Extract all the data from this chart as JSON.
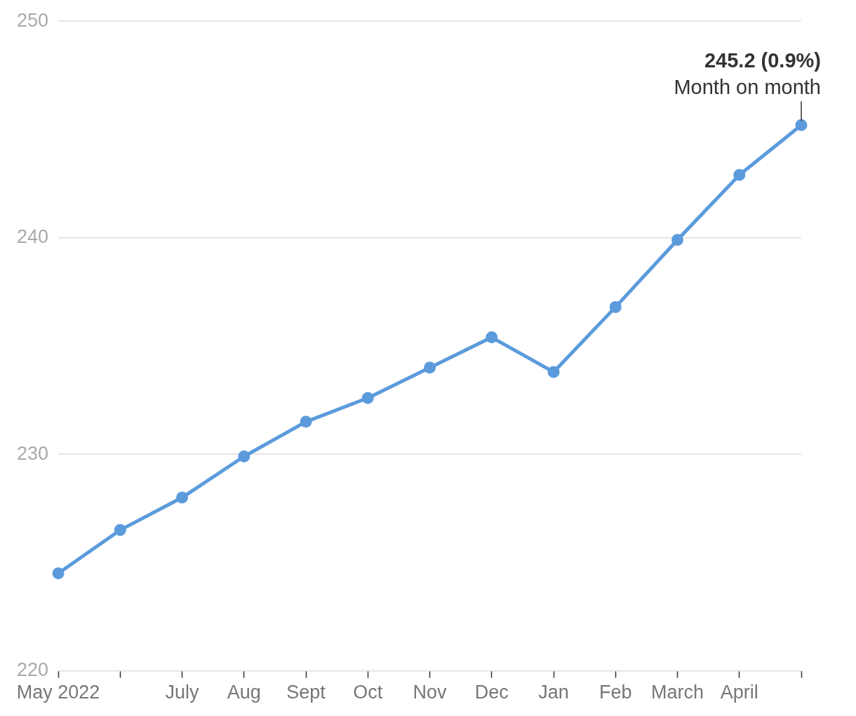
{
  "chart_data": {
    "type": "line",
    "categories": [
      "May 2022",
      null,
      "July",
      "Aug",
      "Sept",
      "Oct",
      "Nov",
      "Dec",
      "Jan",
      "Feb",
      "March",
      "April",
      null
    ],
    "series": [
      {
        "color": "#5b9bdc",
        "values": [
          224.5,
          226.5,
          228.0,
          229.9,
          231.5,
          232.6,
          234.0,
          235.4,
          233.8,
          236.8,
          239.9,
          242.9,
          245.2
        ]
      }
    ],
    "ylim": [
      220,
      250
    ],
    "yticks": [
      220,
      230,
      240,
      250
    ],
    "grid": "y",
    "legend": false,
    "marker": "circle",
    "line_style": "solid",
    "annotations": [
      "245.2 (0.9%)",
      "Month on month"
    ]
  }
}
